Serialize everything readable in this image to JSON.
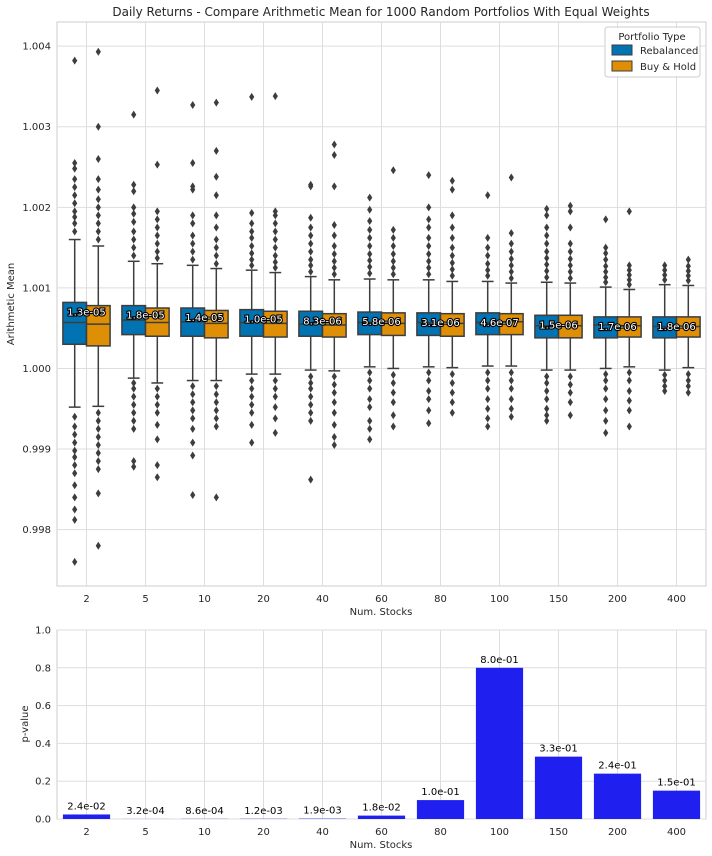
{
  "chart_data": [
    {
      "type": "box",
      "title": "Daily Returns - Compare Arithmetic Mean for 1000 Random Portfolios With Equal Weights",
      "xlabel": "Num. Stocks",
      "ylabel": "Arithmetic Mean",
      "categories": [
        "2",
        "5",
        "10",
        "20",
        "40",
        "60",
        "80",
        "100",
        "150",
        "200",
        "400"
      ],
      "ylim": [
        0.9973,
        1.0043
      ],
      "yticks": [
        0.998,
        0.999,
        1.0,
        1.001,
        1.002,
        1.003,
        1.004
      ],
      "ytick_labels": [
        "0.998",
        "0.999",
        "1.000",
        "1.001",
        "1.002",
        "1.003",
        "1.004"
      ],
      "grid": true,
      "legend": {
        "title": "Portfolio Type",
        "placement": "top-right",
        "entries": [
          "Rebalanced",
          "Buy & Hold"
        ]
      },
      "colors": {
        "Rebalanced": "#0173b2",
        "Buy & Hold": "#de8f05",
        "outlier": "#3d3d3d",
        "whisker": "#3d3d3d"
      },
      "series": [
        {
          "name": "Rebalanced",
          "boxes": [
            {
              "q1": 1.0003,
              "median": 1.00057,
              "q3": 1.00082,
              "whislo": 0.99952,
              "whishi": 1.0016,
              "fliers_high": [
                1.0017,
                1.0018,
                1.00188,
                1.00195,
                1.00205,
                1.00215,
                1.00225,
                1.00235,
                1.00248,
                1.00255,
                1.00382
              ],
              "fliers_low": [
                0.9994,
                0.99928,
                0.99918,
                0.99908,
                0.99898,
                0.9989,
                0.9988,
                0.9987,
                0.99855,
                0.9984,
                0.99825,
                0.99812,
                0.9976
              ]
            },
            {
              "q1": 1.00042,
              "median": 1.0006,
              "q3": 1.00078,
              "whislo": 0.99988,
              "whishi": 1.00133,
              "fliers_high": [
                1.0014,
                1.0015,
                1.0016,
                1.0017,
                1.00182,
                1.00192,
                1.002,
                1.0022,
                1.00228,
                1.00315
              ],
              "fliers_low": [
                0.99982,
                0.99975,
                0.99965,
                0.99955,
                0.99945,
                0.99935,
                0.99925,
                0.99885,
                0.99878
              ]
            },
            {
              "q1": 1.0004,
              "median": 1.00058,
              "q3": 1.00075,
              "whislo": 0.99985,
              "whishi": 1.00128,
              "fliers_high": [
                1.00135,
                1.00145,
                1.00155,
                1.00165,
                1.0018,
                1.0019,
                1.00222,
                1.00226,
                1.00255,
                1.00327
              ],
              "fliers_low": [
                0.99978,
                0.99968,
                0.99958,
                0.99948,
                0.99938,
                0.99925,
                0.99908,
                0.99892,
                0.99843
              ]
            },
            {
              "q1": 1.0004,
              "median": 1.00057,
              "q3": 1.00073,
              "whislo": 0.99993,
              "whishi": 1.00122,
              "fliers_high": [
                1.00128,
                1.00135,
                1.00143,
                1.00152,
                1.00162,
                1.0017,
                1.0018,
                1.00193,
                1.00337
              ],
              "fliers_low": [
                0.99985,
                0.99975,
                0.99965,
                0.99955,
                0.99945,
                0.9993,
                0.99908
              ]
            },
            {
              "q1": 1.0004,
              "median": 1.00055,
              "q3": 1.00071,
              "whislo": 0.99998,
              "whishi": 1.00114,
              "fliers_high": [
                1.0012,
                1.00128,
                1.00135,
                1.00145,
                1.00155,
                1.00165,
                1.00175,
                1.00187,
                1.00226,
                1.00228
              ],
              "fliers_low": [
                0.9999,
                0.99982,
                0.99975,
                0.99965,
                0.99955,
                0.99945,
                0.99935,
                0.99862
              ]
            },
            {
              "q1": 1.00042,
              "median": 1.00057,
              "q3": 1.0007,
              "whislo": 1.00002,
              "whishi": 1.00111,
              "fliers_high": [
                1.00118,
                1.00126,
                1.00134,
                1.00142,
                1.00152,
                1.00162,
                1.00172,
                1.00183,
                1.00197,
                1.00212
              ],
              "fliers_low": [
                0.99995,
                0.99985,
                0.99975,
                0.99962,
                0.99952,
                0.99935,
                0.99925,
                0.99912
              ]
            },
            {
              "q1": 1.00041,
              "median": 1.00057,
              "q3": 1.00069,
              "whislo": 1.00002,
              "whishi": 1.0011,
              "fliers_high": [
                1.00117,
                1.00125,
                1.00133,
                1.00142,
                1.00152,
                1.00162,
                1.00175,
                1.00185,
                1.002,
                1.0024
              ],
              "fliers_low": [
                0.99995,
                0.99985,
                0.99972,
                0.99962,
                0.99948,
                0.99932
              ]
            },
            {
              "q1": 1.00042,
              "median": 1.00057,
              "q3": 1.00069,
              "whislo": 1.00003,
              "whishi": 1.00108,
              "fliers_high": [
                1.00115,
                1.00122,
                1.0013,
                1.0014,
                1.0015,
                1.00162,
                1.00215
              ],
              "fliers_low": [
                0.99995,
                0.99985,
                0.99975,
                0.99962,
                0.9995,
                0.99938,
                0.99928
              ]
            },
            {
              "q1": 1.00038,
              "median": 1.00053,
              "q3": 1.00066,
              "whislo": 0.99998,
              "whishi": 1.00107,
              "fliers_high": [
                1.00113,
                1.00121,
                1.00129,
                1.00137,
                1.00145,
                1.00155,
                1.00165,
                1.00175,
                1.0019,
                1.00198
              ],
              "fliers_low": [
                0.9999,
                0.99982,
                0.99972,
                0.99962,
                0.9995,
                0.99942,
                0.99935
              ]
            },
            {
              "q1": 1.00038,
              "median": 1.00054,
              "q3": 1.00064,
              "whislo": 1.0,
              "whishi": 1.00101,
              "fliers_high": [
                1.00107,
                1.00113,
                1.0012,
                1.00127,
                1.00135,
                1.00143,
                1.0015,
                1.00185
              ],
              "fliers_low": [
                0.99993,
                0.99985,
                0.99975,
                0.99962,
                0.99948,
                0.99935,
                0.9992
              ]
            },
            {
              "q1": 1.00038,
              "median": 1.00052,
              "q3": 1.00064,
              "whislo": 0.99998,
              "whishi": 1.00104,
              "fliers_high": [
                1.0011,
                1.00116,
                1.00122,
                1.00128
              ],
              "fliers_low": [
                0.99992,
                0.99985,
                0.99978,
                0.99972
              ]
            }
          ]
        },
        {
          "name": "Buy & Hold",
          "boxes": [
            {
              "q1": 1.00028,
              "median": 1.00055,
              "q3": 1.00078,
              "whislo": 0.99953,
              "whishi": 1.00152,
              "fliers_high": [
                1.0016,
                1.0017,
                1.0018,
                1.0019,
                1.002,
                1.0021,
                1.00222,
                1.00235,
                1.0026,
                1.003,
                1.00393
              ],
              "fliers_low": [
                0.99945,
                0.99935,
                0.99925,
                0.99915,
                0.99905,
                0.99895,
                0.99885,
                0.99875,
                0.99845,
                0.9978
              ]
            },
            {
              "q1": 1.0004,
              "median": 1.00057,
              "q3": 1.00075,
              "whislo": 0.99982,
              "whishi": 1.0013,
              "fliers_high": [
                1.00137,
                1.00145,
                1.00155,
                1.00165,
                1.00175,
                1.00185,
                1.00195,
                1.00253,
                1.00345
              ],
              "fliers_low": [
                0.99975,
                0.99965,
                0.99955,
                0.99945,
                0.9993,
                0.99912,
                0.9988,
                0.99865
              ]
            },
            {
              "q1": 1.00038,
              "median": 1.00056,
              "q3": 1.00072,
              "whislo": 0.99985,
              "whishi": 1.00124,
              "fliers_high": [
                1.0013,
                1.0014,
                1.0015,
                1.0016,
                1.00175,
                1.0019,
                1.00215,
                1.00238,
                1.0027,
                1.0033
              ],
              "fliers_low": [
                0.99978,
                0.99968,
                0.99958,
                0.99948,
                0.99938,
                0.99928,
                0.9984
              ]
            },
            {
              "q1": 1.00039,
              "median": 1.00056,
              "q3": 1.00071,
              "whislo": 0.99993,
              "whishi": 1.00119,
              "fliers_high": [
                1.00125,
                1.00132,
                1.0014,
                1.0015,
                1.0016,
                1.0017,
                1.0018,
                1.0019,
                1.00195,
                1.00338
              ],
              "fliers_low": [
                0.99985,
                0.99975,
                0.99965,
                0.99952,
                0.99938,
                0.9992
              ]
            },
            {
              "q1": 1.00039,
              "median": 1.00054,
              "q3": 1.00068,
              "whislo": 0.99997,
              "whishi": 1.0011,
              "fliers_high": [
                1.00117,
                1.00125,
                1.00133,
                1.00142,
                1.00152,
                1.00165,
                1.00178,
                1.00226,
                1.00265,
                1.00278
              ],
              "fliers_low": [
                0.9999,
                0.9998,
                0.9997,
                0.99958,
                0.99945,
                0.9993,
                0.99915,
                0.99905
              ]
            },
            {
              "q1": 1.00041,
              "median": 1.00056,
              "q3": 1.00069,
              "whislo": 1.0,
              "whishi": 1.0011,
              "fliers_high": [
                1.00117,
                1.00125,
                1.00133,
                1.00142,
                1.00152,
                1.00162,
                1.00172,
                1.00246
              ],
              "fliers_low": [
                0.99992,
                0.99982,
                0.9997,
                0.99958,
                0.99942,
                0.99928
              ]
            },
            {
              "q1": 1.0004,
              "median": 1.00056,
              "q3": 1.00068,
              "whislo": 1.00001,
              "whishi": 1.00108,
              "fliers_high": [
                1.00115,
                1.00123,
                1.00131,
                1.0014,
                1.0015,
                1.00162,
                1.00175,
                1.0019,
                1.00222,
                1.00233
              ],
              "fliers_low": [
                0.99993,
                0.99982,
                0.9997,
                0.99958,
                0.99945
              ]
            },
            {
              "q1": 1.00042,
              "median": 1.00058,
              "q3": 1.00068,
              "whislo": 1.00003,
              "whishi": 1.00106,
              "fliers_high": [
                1.00112,
                1.0012,
                1.00128,
                1.00136,
                1.00145,
                1.00155,
                1.00168,
                1.00237
              ],
              "fliers_low": [
                0.99995,
                0.99985,
                0.99975,
                0.99962,
                0.9995,
                0.9994
              ]
            },
            {
              "q1": 1.00038,
              "median": 1.00053,
              "q3": 1.00066,
              "whislo": 0.99998,
              "whishi": 1.00106,
              "fliers_high": [
                1.00112,
                1.0012,
                1.00128,
                1.00136,
                1.00145,
                1.00155,
                1.00175,
                1.00195,
                1.00202
              ],
              "fliers_low": [
                0.9999,
                0.9998,
                0.9997,
                0.99958,
                0.99942
              ]
            },
            {
              "q1": 1.00039,
              "median": 1.00053,
              "q3": 1.00064,
              "whislo": 1.00002,
              "whishi": 1.00098,
              "fliers_high": [
                1.00104,
                1.0011,
                1.00116,
                1.00122,
                1.00128,
                1.00195
              ],
              "fliers_low": [
                0.99995,
                0.99985,
                0.99972,
                0.9996,
                0.99948,
                0.99928
              ]
            },
            {
              "q1": 1.00039,
              "median": 1.00052,
              "q3": 1.00064,
              "whislo": 1.00001,
              "whishi": 1.00103,
              "fliers_high": [
                1.00109,
                1.00115,
                1.00121,
                1.00127,
                1.00135
              ],
              "fliers_low": [
                0.99993,
                0.99985,
                0.99978,
                0.9997
              ]
            }
          ]
        }
      ],
      "annotations": [
        "1.3e-05",
        "1.8e-05",
        "1.4e-05",
        "1.0e-05",
        "8.3e-06",
        "5.8e-06",
        "3.1e-06",
        "4.6e-07",
        "1.5e-06",
        "1.7e-06",
        "1.8e-06"
      ]
    },
    {
      "type": "bar",
      "xlabel": "Num. Stocks",
      "ylabel": "p-value",
      "categories": [
        "2",
        "5",
        "10",
        "20",
        "40",
        "60",
        "80",
        "100",
        "150",
        "200",
        "400"
      ],
      "values": [
        0.024,
        0.00032,
        0.00086,
        0.0012,
        0.0019,
        0.018,
        0.1,
        0.8,
        0.33,
        0.24,
        0.15
      ],
      "labels": [
        "2.4e-02",
        "3.2e-04",
        "8.6e-04",
        "1.2e-03",
        "1.9e-03",
        "1.8e-02",
        "1.0e-01",
        "8.0e-01",
        "3.3e-01",
        "2.4e-01",
        "1.5e-01"
      ],
      "ylim": [
        0,
        1
      ],
      "yticks": [
        0.0,
        0.2,
        0.4,
        0.6,
        0.8,
        1.0
      ],
      "ytick_labels": [
        "0.0",
        "0.2",
        "0.4",
        "0.6",
        "0.8",
        "1.0"
      ],
      "grid": true,
      "color": "#1f1fef"
    }
  ]
}
